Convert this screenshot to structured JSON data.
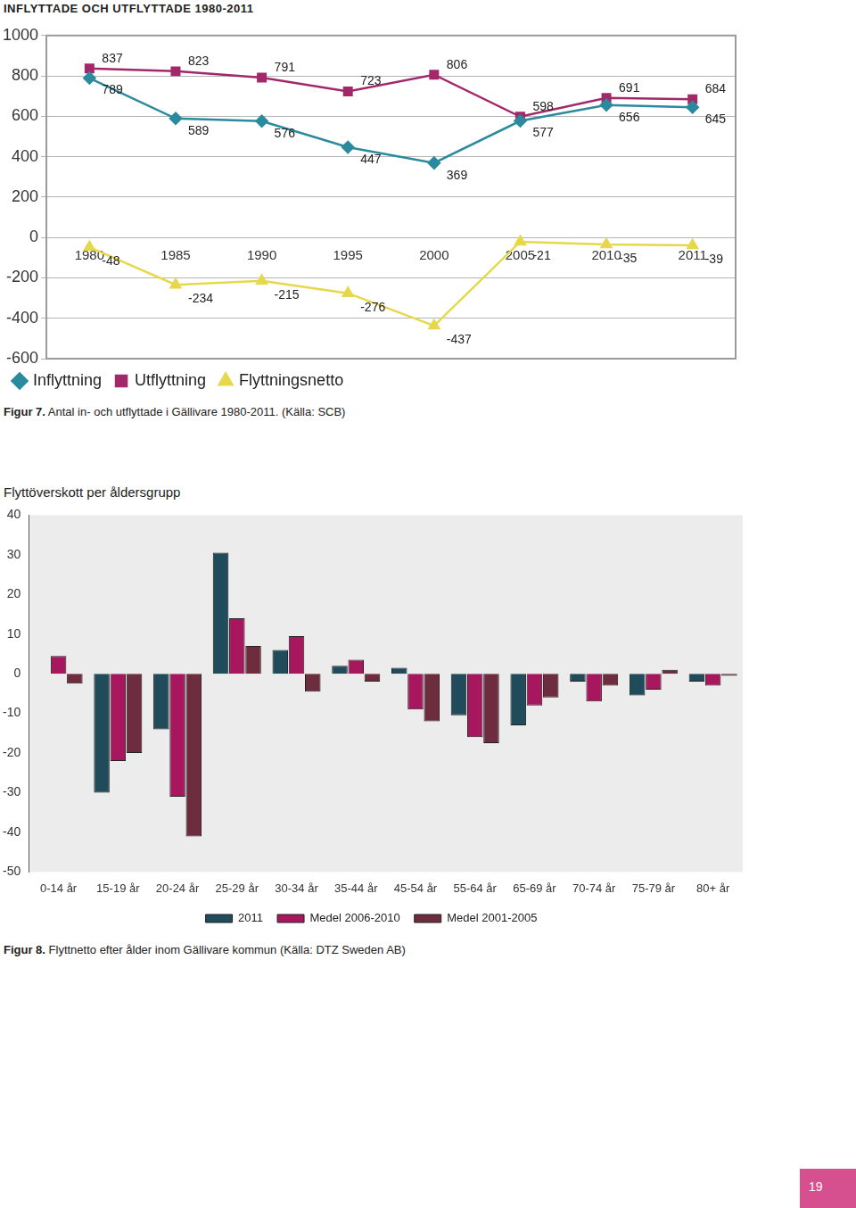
{
  "page_number": 19,
  "chart_data": [
    {
      "type": "line",
      "title": "INFLYTTADE OCH UTFLYTTADE 1980-2011",
      "caption": "Figur 7. Antal in- och utflyttade i Gällivare 1980-2011. (Källa: SCB)",
      "categories": [
        "1980",
        "1985",
        "1990",
        "1995",
        "2000",
        "2005",
        "2010",
        "2011"
      ],
      "series": [
        {
          "name": "Inflyttning",
          "color": "#2a8a9e",
          "marker": "diamond",
          "values": [
            789,
            589,
            576,
            447,
            369,
            577,
            656,
            645
          ]
        },
        {
          "name": "Utflyttning",
          "color": "#a3286a",
          "marker": "square",
          "values": [
            837,
            823,
            791,
            723,
            806,
            598,
            691,
            684
          ]
        },
        {
          "name": "Flyttningsnetto",
          "color": "#e6d84a",
          "marker": "triangle",
          "values": [
            -48,
            -234,
            -215,
            -276,
            -437,
            -21,
            -35,
            -39
          ]
        }
      ],
      "ylim": [
        -600,
        1000
      ],
      "yticks": [
        -600,
        -400,
        -200,
        0,
        200,
        400,
        600,
        800,
        1000
      ],
      "grid": true,
      "legend": "bottom",
      "data_labels": true
    },
    {
      "type": "bar",
      "title": "Flyttöverskott per åldersgrupp",
      "caption": "Figur 8. Flyttnetto efter ålder inom Gällivare kommun (Källa: DTZ Sweden AB)",
      "categories": [
        "0-14 år",
        "15-19 år",
        "20-24 år",
        "25-29 år",
        "30-34 år",
        "35-44 år",
        "45-54 år",
        "55-64 år",
        "65-69 år",
        "70-74 år",
        "75-79 år",
        "80+ år"
      ],
      "series": [
        {
          "name": "2011",
          "color": "#1f4b5a",
          "values": [
            0,
            -30,
            -14,
            30.5,
            6,
            2,
            1.5,
            -10.5,
            -13,
            -2,
            -5.5,
            -2
          ]
        },
        {
          "name": "Medel 2006-2010",
          "color": "#a6175e",
          "values": [
            4.5,
            -22,
            -31,
            14,
            9.5,
            3.5,
            -9,
            -16,
            -8,
            -7,
            -4,
            -3
          ]
        },
        {
          "name": "Medel 2001-2005",
          "color": "#6e2c3f",
          "values": [
            -2.5,
            -20,
            -41,
            7,
            -4.5,
            -2,
            -12,
            -17.5,
            -6,
            -3,
            1,
            -0.5
          ]
        }
      ],
      "ylim": [
        -50,
        40
      ],
      "yticks": [
        -50,
        -40,
        -30,
        -20,
        -10,
        0,
        10,
        20,
        30,
        40
      ],
      "grid": false,
      "legend": "bottom",
      "data_labels": false
    }
  ]
}
